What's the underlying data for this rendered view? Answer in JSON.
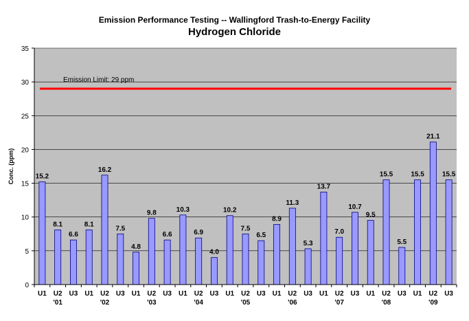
{
  "chart_data": {
    "type": "bar",
    "title": "Emission Performance Testing -- Wallingford Trash-to-Energy Facility",
    "subtitle": "Hydrogen Chloride",
    "xlabel": "",
    "ylabel": "Conc. (ppm)",
    "ylim": [
      0,
      35
    ],
    "yticks": [
      0,
      5,
      10,
      15,
      20,
      25,
      30,
      35
    ],
    "grid": true,
    "categories": [
      {
        "unit": "U1",
        "year": ""
      },
      {
        "unit": "U2",
        "year": "'01"
      },
      {
        "unit": "U3",
        "year": ""
      },
      {
        "unit": "U1",
        "year": ""
      },
      {
        "unit": "U2",
        "year": "'02"
      },
      {
        "unit": "U3",
        "year": ""
      },
      {
        "unit": "U1",
        "year": ""
      },
      {
        "unit": "U2",
        "year": "'03"
      },
      {
        "unit": "U3",
        "year": ""
      },
      {
        "unit": "U1",
        "year": ""
      },
      {
        "unit": "U2",
        "year": "'04"
      },
      {
        "unit": "U3",
        "year": ""
      },
      {
        "unit": "U1",
        "year": ""
      },
      {
        "unit": "U2",
        "year": "'05"
      },
      {
        "unit": "U3",
        "year": ""
      },
      {
        "unit": "U1",
        "year": ""
      },
      {
        "unit": "U2",
        "year": "'06"
      },
      {
        "unit": "U3",
        "year": ""
      },
      {
        "unit": "U1",
        "year": ""
      },
      {
        "unit": "U2",
        "year": "'07"
      },
      {
        "unit": "U3",
        "year": ""
      },
      {
        "unit": "U1",
        "year": ""
      },
      {
        "unit": "U2",
        "year": "'08"
      },
      {
        "unit": "U3",
        "year": ""
      },
      {
        "unit": "U1",
        "year": ""
      },
      {
        "unit": "U2",
        "year": "'09"
      },
      {
        "unit": "U3",
        "year": ""
      }
    ],
    "values": [
      15.2,
      8.1,
      6.6,
      8.1,
      16.2,
      7.5,
      4.8,
      9.8,
      6.6,
      10.3,
      6.9,
      4.0,
      10.2,
      7.5,
      6.5,
      8.9,
      11.3,
      5.3,
      13.7,
      7.0,
      10.7,
      9.5,
      15.5,
      5.5,
      15.5,
      21.1,
      15.5
    ],
    "value_labels": [
      "15.2",
      "8.1",
      "6.6",
      "8.1",
      "16.2",
      "7.5",
      "4.8",
      "9.8",
      "6.6",
      "10.3",
      "6.9",
      "4.0",
      "10.2",
      "7.5",
      "6.5",
      "8.9",
      "11.3",
      "5.3",
      "13.7",
      "7.0",
      "10.7",
      "9.5",
      "15.5",
      "5.5",
      "15.5",
      "21.1",
      "15.5"
    ],
    "limit_line": {
      "value": 29,
      "label": "Emission Limit: 29 ppm",
      "color": "#ff0000"
    },
    "colors": {
      "bar_fill": "#9999ff",
      "bar_stroke": "#000080",
      "plot_bg": "#c0c0c0",
      "grid": "#000000"
    }
  }
}
